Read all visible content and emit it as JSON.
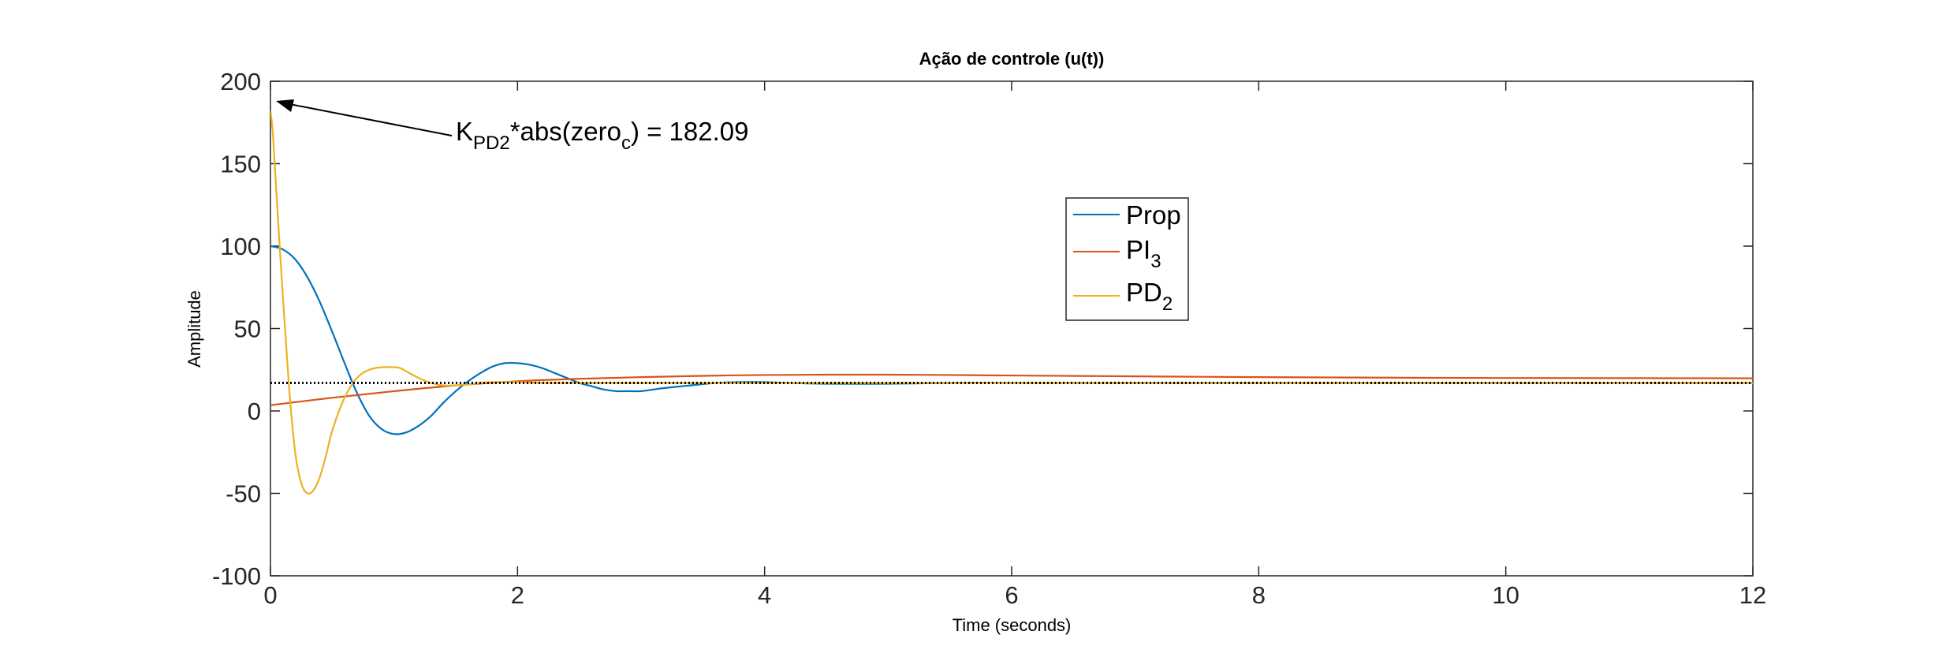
{
  "chart_data": {
    "type": "line",
    "title": "Ação de controle (u(t))",
    "xlabel": "Time (seconds)",
    "ylabel": "Amplitude",
    "xlim": [
      0,
      12
    ],
    "ylim": [
      -100,
      200
    ],
    "xticks": [
      0,
      2,
      4,
      6,
      8,
      10,
      12
    ],
    "xtick_labels": [
      "0",
      "2",
      "4",
      "6",
      "8",
      "10",
      "12"
    ],
    "yticks": [
      -100,
      -50,
      0,
      50,
      100,
      150,
      200
    ],
    "ytick_labels": [
      "-100",
      "-50",
      "0",
      "50",
      "100",
      "150",
      "200"
    ],
    "grid": false,
    "legend_position": "upper-middle",
    "annotation": {
      "text_main": "K",
      "text_sub1": "PD2",
      "text_mid": "*abs(zero",
      "text_sub2": "c",
      "text_end": ") = 182.09",
      "target": [
        0.02,
        186
      ]
    },
    "reference_line": {
      "y": 17,
      "style": "dotted",
      "color": "#000000"
    },
    "series": [
      {
        "name": "Prop",
        "legend_main": "Prop",
        "legend_sub": "",
        "color": "#0072BD",
        "x": [
          0,
          0.1,
          0.2,
          0.3,
          0.4,
          0.5,
          0.6,
          0.7,
          0.8,
          0.9,
          1.0,
          1.1,
          1.2,
          1.3,
          1.4,
          1.5,
          1.6,
          1.7,
          1.8,
          1.9,
          2.0,
          2.1,
          2.2,
          2.3,
          2.4,
          2.5,
          2.6,
          2.7,
          2.8,
          2.9,
          3.0,
          3.1,
          3.2,
          3.4,
          3.6,
          3.8,
          4.0,
          4.2,
          4.5,
          5.0,
          5.5,
          6.0,
          7.0,
          8.0,
          9.0,
          10.0,
          11.0,
          12.0
        ],
        "y": [
          100,
          98,
          92,
          81,
          66,
          48,
          29,
          11,
          -3,
          -11,
          -14,
          -13,
          -9,
          -3,
          5,
          12,
          18,
          23,
          27,
          29,
          29,
          28,
          26,
          23,
          20,
          17,
          15,
          13,
          12,
          12,
          12,
          13,
          14,
          15.5,
          17,
          17.5,
          17.5,
          17,
          16.5,
          16.5,
          17,
          17,
          17,
          17,
          17,
          17,
          17,
          17
        ]
      },
      {
        "name": "PI3",
        "legend_main": "PI",
        "legend_sub": "3",
        "color": "#D95319",
        "x": [
          0,
          0.5,
          1.0,
          1.5,
          2.0,
          2.5,
          3.0,
          3.5,
          4.0,
          4.5,
          5.0,
          5.5,
          6.0,
          7.0,
          8.0,
          9.0,
          10.0,
          11.0,
          12.0
        ],
        "y": [
          3.5,
          8,
          12,
          15.5,
          18,
          19.5,
          20.5,
          21.3,
          21.8,
          22,
          22,
          21.8,
          21.5,
          21,
          20.5,
          20.2,
          20,
          19.9,
          19.8
        ]
      },
      {
        "name": "PD2",
        "legend_main": "PD",
        "legend_sub": "2",
        "color": "#EDB120",
        "x": [
          0,
          0.02,
          0.05,
          0.1,
          0.15,
          0.2,
          0.25,
          0.3,
          0.35,
          0.4,
          0.45,
          0.5,
          0.6,
          0.7,
          0.8,
          0.9,
          1.0,
          1.05,
          1.1,
          1.2,
          1.3,
          1.4,
          1.5,
          1.6,
          1.7,
          1.8,
          2.0,
          2.2,
          2.5,
          3.0,
          4.0,
          6.0,
          8.0,
          10.0,
          12.0
        ],
        "y": [
          182,
          168,
          130,
          70,
          15,
          -25,
          -44,
          -50,
          -48,
          -40,
          -27,
          -12,
          8,
          20,
          25,
          26.5,
          26.5,
          26,
          24,
          20,
          17,
          15.5,
          15.5,
          16,
          17,
          17.5,
          17.5,
          17,
          17,
          17,
          17,
          17,
          17,
          17,
          17
        ]
      }
    ]
  }
}
